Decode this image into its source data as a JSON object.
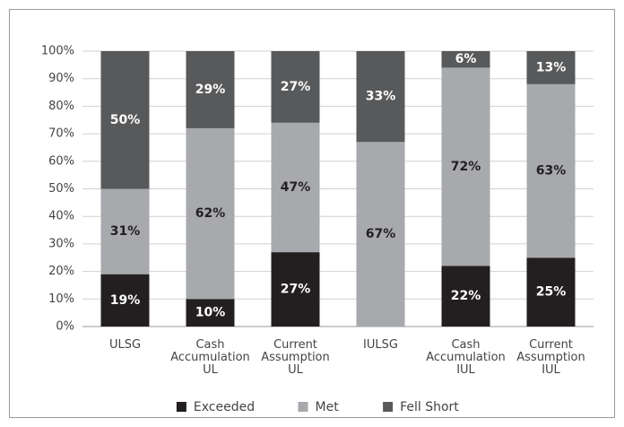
{
  "chart_data": {
    "type": "stacked_bar",
    "categories": [
      "ULSG",
      "Cash Accumulation UL",
      "Current Assumption UL",
      "IULSG",
      "Cash Accumulation IUL",
      "Current Assumption IUL"
    ],
    "series": [
      {
        "name": "Exceeded",
        "color": "#231f20",
        "label_color": "#ffffff",
        "values": [
          19,
          10,
          27,
          null,
          22,
          25
        ],
        "value_labels": [
          "19%",
          "10%",
          "27%",
          null,
          "22%",
          "25%"
        ]
      },
      {
        "name": "Met",
        "color": "#a7a9ac",
        "label_color": "#231f20",
        "values": [
          31,
          62,
          47,
          67,
          72,
          63
        ],
        "value_labels": [
          "31%",
          "62%",
          "47%",
          "67%",
          "72%",
          "63%"
        ]
      },
      {
        "name": "Fell Short",
        "color": "#58595b",
        "label_color": "#ffffff",
        "values": [
          50,
          29,
          27,
          33,
          6,
          13
        ],
        "value_labels": [
          "50%",
          "29%",
          "27%",
          "33%",
          "6%",
          "13%"
        ]
      }
    ],
    "ylim": [
      0,
      100
    ],
    "yticks": [
      {
        "value": 0,
        "label": "0%"
      },
      {
        "value": 10,
        "label": "10%"
      },
      {
        "value": 20,
        "label": "20%"
      },
      {
        "value": 30,
        "label": "30%"
      },
      {
        "value": 40,
        "label": "40%"
      },
      {
        "value": 50,
        "label": "50%"
      },
      {
        "value": 60,
        "label": "60%"
      },
      {
        "value": 70,
        "label": "70%"
      },
      {
        "value": 80,
        "label": "80%"
      },
      {
        "value": 90,
        "label": "90%"
      },
      {
        "value": 100,
        "label": "100%"
      }
    ],
    "grid": true,
    "legend": "bottom"
  }
}
